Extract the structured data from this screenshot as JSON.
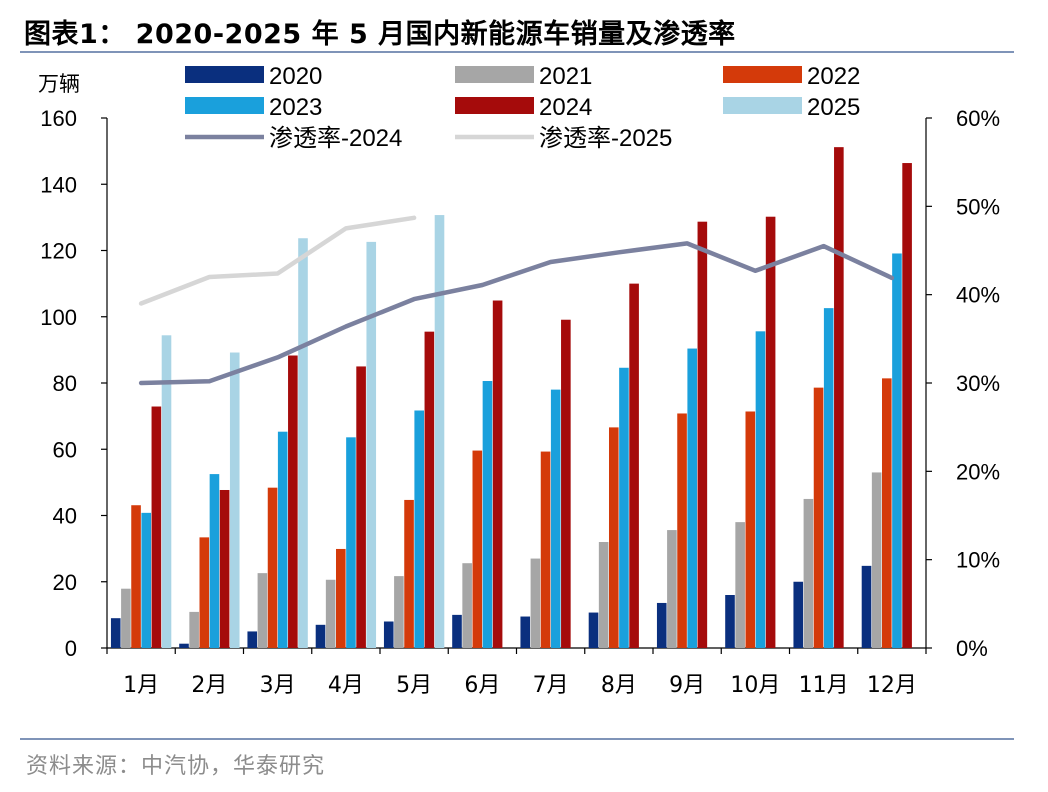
{
  "title": "图表1：  2020-2025 年 5 月国内新能源车销量及渗透率",
  "source": "资料来源：中汽协，华泰研究",
  "chart_data": {
    "type": "bar",
    "ylabel": "万辆",
    "ylim": [
      0,
      160
    ],
    "yticks": [
      "0",
      "20",
      "40",
      "60",
      "80",
      "100",
      "120",
      "140",
      "160"
    ],
    "y2lim": [
      0,
      0.6
    ],
    "y2ticks": [
      "0%",
      "10%",
      "20%",
      "30%",
      "40%",
      "50%",
      "60%"
    ],
    "categories": [
      "1月",
      "2月",
      "3月",
      "4月",
      "5月",
      "6月",
      "7月",
      "8月",
      "9月",
      "10月",
      "11月",
      "12月"
    ],
    "legend_position": "top",
    "series": [
      {
        "name": "2020",
        "color": "#0a2f7e",
        "values": [
          9,
          1.3,
          5,
          7,
          8,
          10,
          9.5,
          10.7,
          13.6,
          16,
          20,
          24.8
        ]
      },
      {
        "name": "2021",
        "color": "#a6a6a6",
        "values": [
          17.9,
          10.9,
          22.6,
          20.6,
          21.7,
          25.6,
          27,
          32,
          35.6,
          38,
          45,
          53
        ]
      },
      {
        "name": "2022",
        "color": "#d43a0a",
        "values": [
          43.1,
          33.4,
          48.4,
          29.9,
          44.7,
          59.6,
          59.3,
          66.6,
          70.8,
          71.4,
          78.6,
          81.4
        ]
      },
      {
        "name": "2023",
        "color": "#1aa0dc",
        "values": [
          40.8,
          52.5,
          65.3,
          63.6,
          71.7,
          80.6,
          78,
          84.6,
          90.4,
          95.6,
          102.6,
          119.1
        ]
      },
      {
        "name": "2024",
        "color": "#a50b0b",
        "values": [
          72.9,
          47.7,
          88.3,
          85,
          95.5,
          104.9,
          99.1,
          110,
          128.7,
          130.2,
          151.2,
          146.4
        ]
      },
      {
        "name": "2025",
        "color": "#a9d4e5",
        "values": [
          94.4,
          89.2,
          123.7,
          122.6,
          130.7,
          null,
          null,
          null,
          null,
          null,
          null,
          null
        ]
      }
    ],
    "lines": [
      {
        "name": "渗透率-2024",
        "color": "#7b819f",
        "values": [
          0.3,
          0.302,
          0.329,
          0.364,
          0.395,
          0.411,
          0.437,
          0.448,
          0.458,
          0.427,
          0.455,
          0.419
        ]
      },
      {
        "name": "渗透率-2025",
        "color": "#d6d6d6",
        "values": [
          0.39,
          0.42,
          0.424,
          0.475,
          0.487,
          null,
          null,
          null,
          null,
          null,
          null,
          null
        ]
      }
    ]
  }
}
